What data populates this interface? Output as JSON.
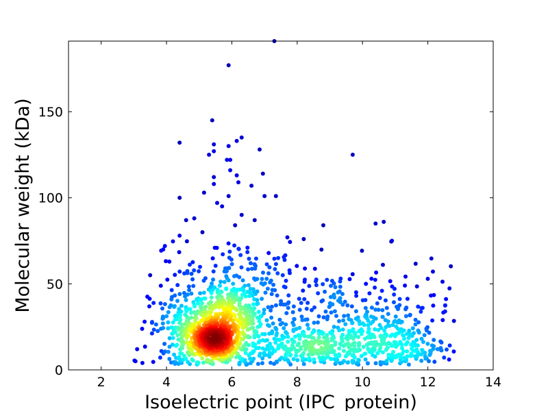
{
  "chart_data": {
    "type": "scatter",
    "title": "",
    "xlabel": "Isoelectric point (IPC_protein)",
    "ylabel": "Molecular weight (kDa)",
    "xlim": [
      1,
      14
    ],
    "ylim": [
      0,
      191
    ],
    "xticks": [
      2,
      4,
      6,
      8,
      10,
      12,
      14
    ],
    "yticks": [
      0,
      50,
      100,
      150
    ],
    "grid": false,
    "legend": "none",
    "color_by": "point density (jet colormap)",
    "colormap": [
      "#00007f",
      "#0000ff",
      "#007fff",
      "#00ffff",
      "#7fff7f",
      "#ffff00",
      "#ff7f00",
      "#ff0000",
      "#7f0000"
    ],
    "outliers": [
      {
        "x": 7.3,
        "y": 191
      },
      {
        "x": 5.9,
        "y": 177
      },
      {
        "x": 5.4,
        "y": 145
      },
      {
        "x": 6.3,
        "y": 135
      },
      {
        "x": 4.4,
        "y": 132
      },
      {
        "x": 6.15,
        "y": 133
      },
      {
        "x": 5.45,
        "y": 131
      },
      {
        "x": 5.9,
        "y": 130
      },
      {
        "x": 5.45,
        "y": 127
      },
      {
        "x": 6.85,
        "y": 128
      },
      {
        "x": 5.3,
        "y": 125
      },
      {
        "x": 9.7,
        "y": 125
      },
      {
        "x": 5.85,
        "y": 122
      },
      {
        "x": 5.95,
        "y": 122
      },
      {
        "x": 5.95,
        "y": 116
      },
      {
        "x": 6.95,
        "y": 114
      },
      {
        "x": 6.15,
        "y": 113
      },
      {
        "x": 5.45,
        "y": 112
      },
      {
        "x": 6.2,
        "y": 109
      },
      {
        "x": 5.45,
        "y": 108
      },
      {
        "x": 6.6,
        "y": 107
      },
      {
        "x": 5.15,
        "y": 103
      },
      {
        "x": 7.0,
        "y": 101
      },
      {
        "x": 7.35,
        "y": 101
      },
      {
        "x": 4.4,
        "y": 100
      },
      {
        "x": 5.9,
        "y": 101
      },
      {
        "x": 5.55,
        "y": 97
      },
      {
        "x": 5.7,
        "y": 95
      },
      {
        "x": 4.6,
        "y": 87
      },
      {
        "x": 4.85,
        "y": 88
      },
      {
        "x": 6.3,
        "y": 90
      },
      {
        "x": 6.7,
        "y": 87
      },
      {
        "x": 10.65,
        "y": 86
      },
      {
        "x": 10.4,
        "y": 85
      },
      {
        "x": 8.8,
        "y": 84
      },
      {
        "x": 6.1,
        "y": 84
      },
      {
        "x": 4.4,
        "y": 78
      },
      {
        "x": 5.1,
        "y": 80
      },
      {
        "x": 7.7,
        "y": 77
      },
      {
        "x": 10.9,
        "y": 75
      },
      {
        "x": 8.2,
        "y": 76
      },
      {
        "x": 3.95,
        "y": 72
      },
      {
        "x": 3.9,
        "y": 70
      },
      {
        "x": 3.5,
        "y": 55
      },
      {
        "x": 3.1,
        "y": 12
      },
      {
        "x": 3.05,
        "y": 5
      },
      {
        "x": 12.65,
        "y": 6
      },
      {
        "x": 12.3,
        "y": 12
      }
    ],
    "clusters": [
      {
        "cx": 5.4,
        "cy": 17,
        "sx": 0.45,
        "sy": 6,
        "n": 380
      },
      {
        "cx": 5.9,
        "cy": 30,
        "sx": 0.55,
        "sy": 10,
        "n": 260
      },
      {
        "cx": 5.5,
        "cy": 22,
        "sx": 1.0,
        "sy": 14,
        "n": 360
      },
      {
        "cx": 8.8,
        "cy": 13,
        "sx": 1.2,
        "sy": 6,
        "n": 260
      },
      {
        "cx": 9.5,
        "cy": 28,
        "sx": 1.6,
        "sy": 16,
        "n": 300
      },
      {
        "cx": 11.0,
        "cy": 15,
        "sx": 0.8,
        "sy": 10,
        "n": 160
      },
      {
        "cx": 6.5,
        "cy": 55,
        "sx": 1.2,
        "sy": 15,
        "n": 130
      },
      {
        "cx": 4.4,
        "cy": 30,
        "sx": 0.4,
        "sy": 18,
        "n": 80
      }
    ]
  }
}
